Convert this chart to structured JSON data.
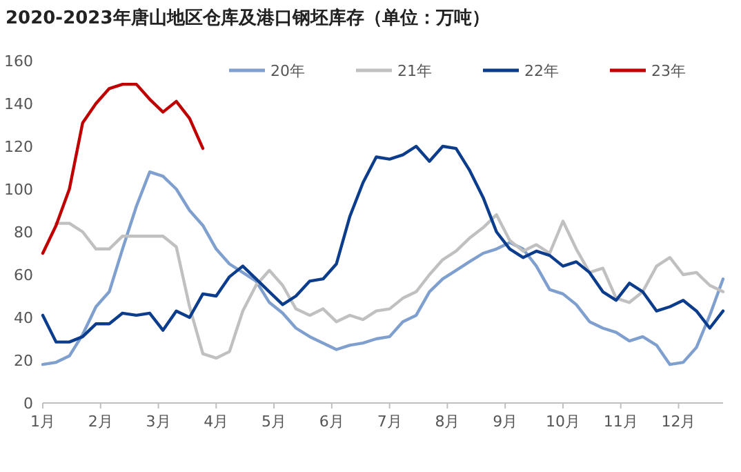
{
  "chart_data": {
    "type": "line",
    "title": "2020-2023年唐山地区仓库及港口钢坯库存（单位：万吨）",
    "x": [
      1,
      1.23,
      1.46,
      1.69,
      1.92,
      2.15,
      2.38,
      2.62,
      2.85,
      3.08,
      3.31,
      3.54,
      3.77,
      4,
      4.23,
      4.46,
      4.69,
      4.92,
      5.15,
      5.38,
      5.62,
      5.85,
      6.08,
      6.31,
      6.54,
      6.77,
      7,
      7.23,
      7.46,
      7.69,
      7.92,
      8.15,
      8.38,
      8.62,
      8.85,
      9.08,
      9.31,
      9.54,
      9.77,
      10,
      10.23,
      10.46,
      10.69,
      10.92,
      11.15,
      11.38,
      11.62,
      11.85,
      12.08,
      12.31,
      12.54,
      12.77
    ],
    "series": [
      {
        "name": "20年",
        "color": "#7f9fcf",
        "values": [
          18,
          19,
          22,
          32,
          45,
          52,
          72,
          92,
          108,
          106,
          100,
          90,
          83,
          72,
          65,
          61,
          57,
          47,
          42,
          35,
          31,
          28,
          25,
          27,
          28,
          30,
          31,
          38,
          41,
          52,
          58,
          62,
          66,
          70,
          72,
          75,
          72,
          64,
          53,
          51,
          46,
          38,
          35,
          33,
          29,
          31,
          27,
          18,
          19,
          26,
          41,
          58
        ]
      },
      {
        "name": "21年",
        "color": "#c0c0c0",
        "values": [
          null,
          84,
          84,
          80,
          72,
          72,
          78,
          78,
          78,
          78,
          73,
          45,
          23,
          21,
          24,
          43,
          55,
          62,
          55,
          44,
          41,
          44,
          38,
          41,
          39,
          43,
          44,
          49,
          52,
          60,
          67,
          71,
          77,
          82,
          88,
          76,
          71,
          74,
          70,
          85,
          72,
          61,
          63,
          49,
          47,
          52,
          64,
          68,
          60,
          61,
          55,
          52
        ]
      },
      {
        "name": "22年",
        "color": "#0b3d8c",
        "values": [
          41,
          28.5,
          28.5,
          31,
          37,
          37,
          42,
          41,
          42,
          34,
          43,
          40,
          51,
          50,
          59,
          64,
          58,
          52,
          46,
          50,
          57,
          58,
          65,
          87,
          103,
          115,
          114,
          116,
          120,
          113,
          120,
          119,
          109,
          96,
          80,
          72,
          68,
          71,
          69,
          64,
          66,
          61,
          52,
          48,
          56,
          52,
          43,
          45,
          48,
          43,
          35,
          43
        ]
      },
      {
        "name": "23年",
        "color": "#c00000",
        "x": [
          1,
          1.23,
          1.46,
          1.69,
          1.92,
          2.15,
          2.38,
          2.62,
          2.85,
          3.08,
          3.31,
          3.54,
          3.77
        ],
        "values": [
          70,
          83,
          100,
          131,
          140,
          147,
          149,
          149,
          142,
          136,
          141,
          133,
          119
        ]
      }
    ],
    "xlim": [
      1,
      12.77
    ],
    "xticks": [
      {
        "value": 1,
        "label": "1月"
      },
      {
        "value": 2,
        "label": "2月"
      },
      {
        "value": 3,
        "label": "3月"
      },
      {
        "value": 4,
        "label": "4月"
      },
      {
        "value": 5,
        "label": "5月"
      },
      {
        "value": 6,
        "label": "6月"
      },
      {
        "value": 7,
        "label": "7月"
      },
      {
        "value": 8,
        "label": "8月"
      },
      {
        "value": 9,
        "label": "9月"
      },
      {
        "value": 10,
        "label": "10月"
      },
      {
        "value": 11,
        "label": "11月"
      },
      {
        "value": 12,
        "label": "12月"
      }
    ],
    "ylim": [
      0,
      160
    ],
    "yticks": [
      0,
      20,
      40,
      60,
      80,
      100,
      120,
      140,
      160
    ],
    "legend": "top",
    "grid": false,
    "marker": "none",
    "line_style": "solid"
  }
}
